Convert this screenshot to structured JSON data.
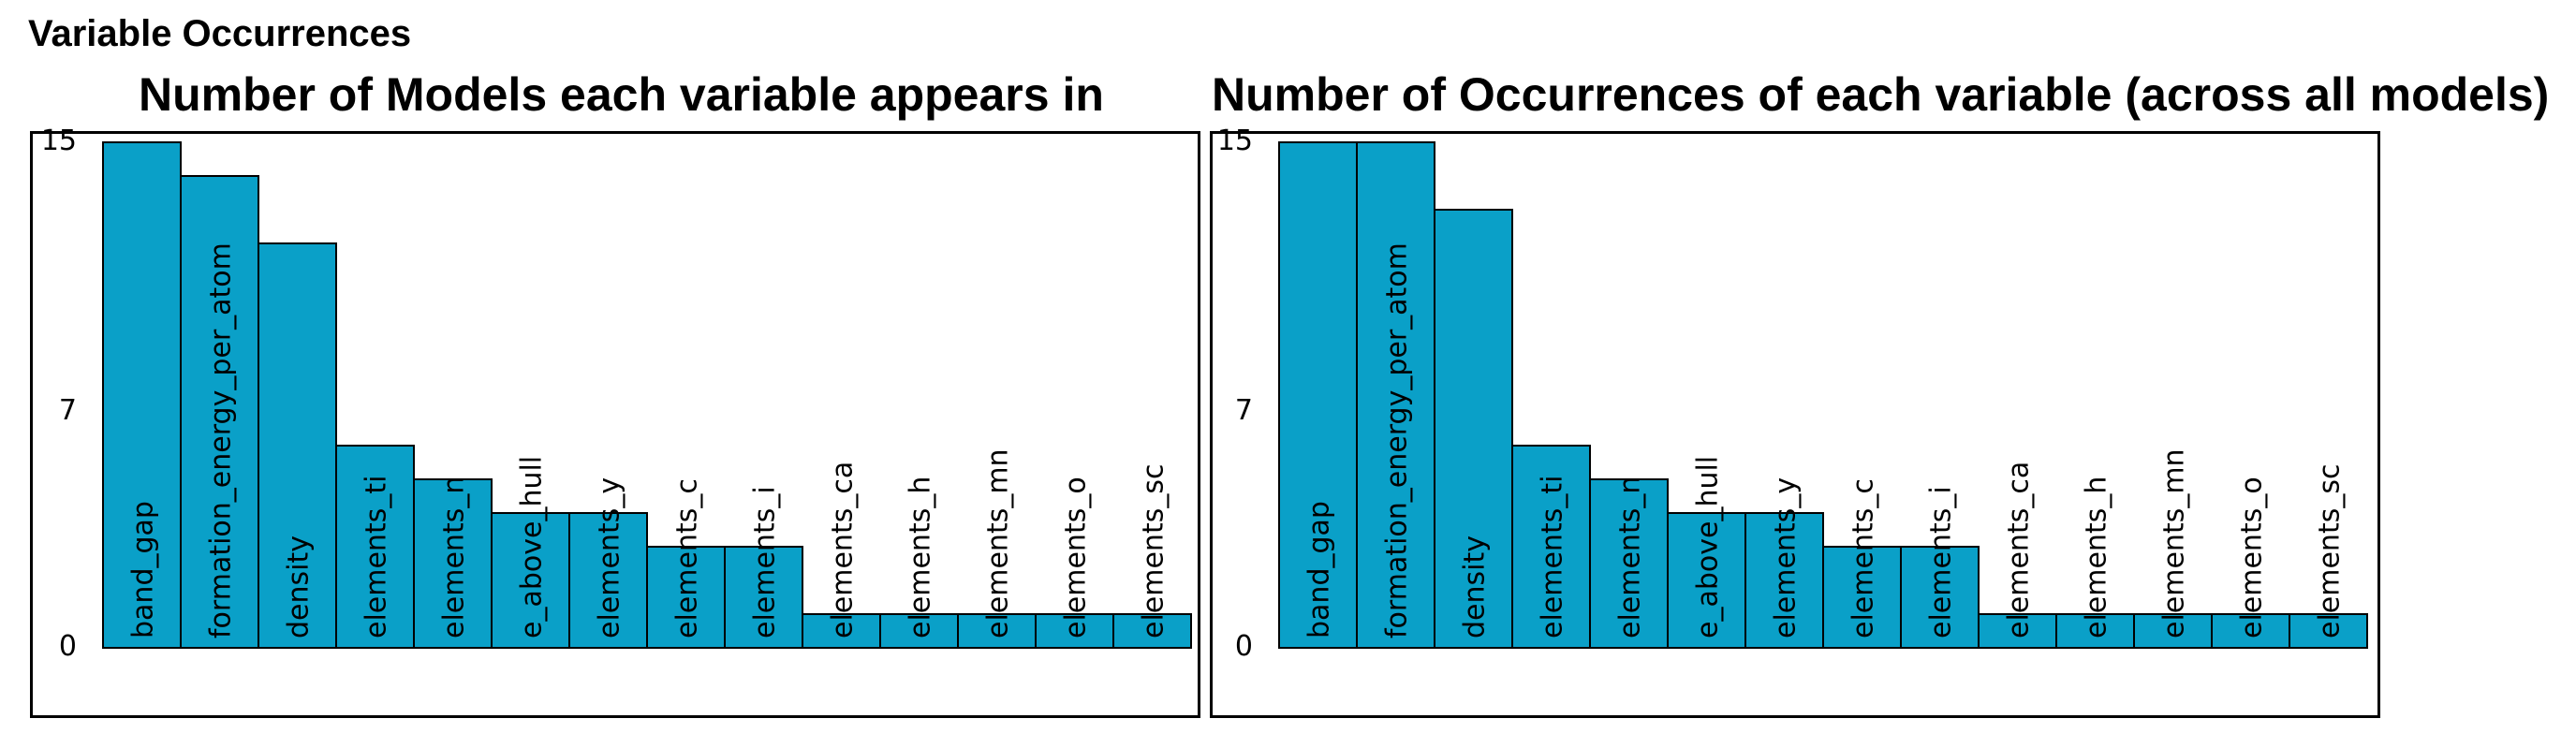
{
  "page_title": "Variable Occurrences",
  "colors": {
    "bar_fill": "#0aa0c8",
    "bar_stroke": "#000000",
    "frame": "#000000"
  },
  "chart_data": [
    {
      "type": "bar",
      "title": "Number of Models each variable appears in",
      "categories": [
        "band_gap",
        "formation_energy_per_atom",
        "density",
        "elements_ti",
        "elements_n",
        "e_above_hull",
        "elements_y",
        "elements_c",
        "elements_i",
        "elements_ca",
        "elements_h",
        "elements_mn",
        "elements_o",
        "elements_sc"
      ],
      "values": [
        15,
        14,
        12,
        6,
        5,
        4,
        4,
        3,
        3,
        1,
        1,
        1,
        1,
        1
      ],
      "yticks": [
        0,
        7,
        15
      ],
      "ylim": [
        0,
        15
      ],
      "grid": false,
      "xlabel": "",
      "ylabel": ""
    },
    {
      "type": "bar",
      "title": "Number of Occurrences of each variable (across all models)",
      "categories": [
        "band_gap",
        "formation_energy_per_atom",
        "density",
        "elements_ti",
        "elements_n",
        "e_above_hull",
        "elements_y",
        "elements_c",
        "elements_i",
        "elements_ca",
        "elements_h",
        "elements_mn",
        "elements_o",
        "elements_sc"
      ],
      "values": [
        15,
        15,
        13,
        6,
        5,
        4,
        4,
        3,
        3,
        1,
        1,
        1,
        1,
        1
      ],
      "yticks": [
        0,
        7,
        15
      ],
      "ylim": [
        0,
        15
      ],
      "grid": false,
      "xlabel": "",
      "ylabel": ""
    }
  ]
}
